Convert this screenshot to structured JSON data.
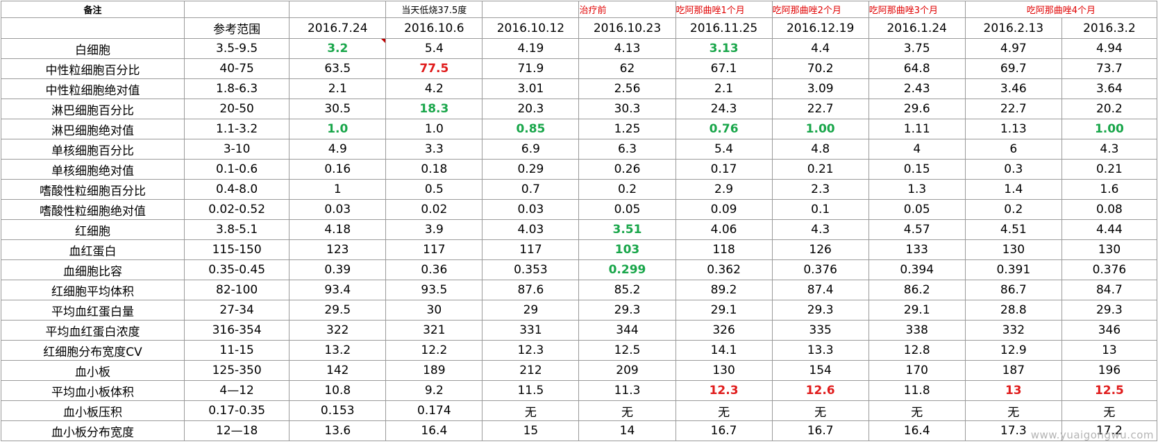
{
  "header_notes": {
    "beizhu": "备注",
    "fever": "当天低烧37.5度",
    "before_treatment": "治疗前",
    "month1": "吃阿那曲唑1个月",
    "month2": "吃阿那曲唑2个月",
    "month3": "吃阿那曲唑3个月",
    "month4": "吃阿那曲唑4个月"
  },
  "columns": {
    "reference": "参考范围",
    "dates": [
      "2016.7.24",
      "2016.10.6",
      "2016.10.12",
      "2016.10.23",
      "2016.11.25",
      "2016.12.19",
      "2016.1.24",
      "2016.2.13",
      "2016.3.2"
    ]
  },
  "rows": [
    {
      "label": "白细胞",
      "ref": "3.5-9.5",
      "values": [
        "3.2",
        "5.4",
        "4.19",
        "4.13",
        "3.13",
        "4.4",
        "3.75",
        "4.97",
        "4.94"
      ],
      "styles": [
        "green",
        "",
        "",
        "",
        "green",
        "",
        "",
        "",
        ""
      ]
    },
    {
      "label": "中性粒细胞百分比",
      "ref": "40-75",
      "values": [
        "63.5",
        "77.5",
        "71.9",
        "62",
        "67.1",
        "70.2",
        "64.8",
        "69.7",
        "73.7"
      ],
      "styles": [
        "",
        "red",
        "",
        "",
        "",
        "",
        "",
        "",
        ""
      ]
    },
    {
      "label": "中性粒细胞绝对值",
      "ref": "1.8-6.3",
      "values": [
        "2.1",
        "4.2",
        "3.01",
        "2.56",
        "2.1",
        "3.09",
        "2.43",
        "3.46",
        "3.64"
      ],
      "styles": [
        "",
        "",
        "",
        "",
        "",
        "",
        "",
        "",
        ""
      ]
    },
    {
      "label": "淋巴细胞百分比",
      "ref": "20-50",
      "values": [
        "30.5",
        "18.3",
        "20.3",
        "30.3",
        "24.3",
        "22.7",
        "29.6",
        "22.7",
        "20.2"
      ],
      "styles": [
        "",
        "green",
        "",
        "",
        "",
        "",
        "",
        "",
        ""
      ]
    },
    {
      "label": "淋巴细胞绝对值",
      "ref": "1.1-3.2",
      "values": [
        "1.0",
        "1.0",
        "0.85",
        "1.25",
        "0.76",
        "1.00",
        "1.11",
        "1.13",
        "1.00"
      ],
      "styles": [
        "green",
        "",
        "green",
        "",
        "green",
        "green",
        "",
        "",
        "green"
      ]
    },
    {
      "label": "单核细胞百分比",
      "ref": "3-10",
      "values": [
        "4.9",
        "3.3",
        "6.9",
        "6.3",
        "5.4",
        "4.8",
        "4",
        "6",
        "4.3"
      ],
      "styles": [
        "",
        "",
        "",
        "",
        "",
        "",
        "",
        "",
        ""
      ]
    },
    {
      "label": "单核细胞绝对值",
      "ref": "0.1-0.6",
      "values": [
        "0.16",
        "0.18",
        "0.29",
        "0.26",
        "0.17",
        "0.21",
        "0.15",
        "0.3",
        "0.21"
      ],
      "styles": [
        "",
        "",
        "",
        "",
        "",
        "",
        "",
        "",
        ""
      ]
    },
    {
      "label": "嗜酸性粒细胞百分比",
      "ref": "0.4-8.0",
      "values": [
        "1",
        "0.5",
        "0.7",
        "0.2",
        "2.9",
        "2.3",
        "1.3",
        "1.4",
        "1.6"
      ],
      "styles": [
        "",
        "",
        "",
        "",
        "",
        "",
        "",
        "",
        ""
      ]
    },
    {
      "label": "嗜酸性粒细胞绝对值",
      "ref": "0.02-0.52",
      "values": [
        "0.03",
        "0.02",
        "0.03",
        "0.05",
        "0.09",
        "0.1",
        "0.05",
        "0.2",
        "0.08"
      ],
      "styles": [
        "",
        "",
        "",
        "",
        "",
        "",
        "",
        "",
        ""
      ]
    },
    {
      "label": "红细胞",
      "ref": "3.8-5.1",
      "values": [
        "4.18",
        "3.9",
        "4.03",
        "3.51",
        "4.06",
        "4.3",
        "4.57",
        "4.51",
        "4.44"
      ],
      "styles": [
        "",
        "",
        "",
        "green",
        "",
        "",
        "",
        "",
        ""
      ]
    },
    {
      "label": "血红蛋白",
      "ref": "115-150",
      "values": [
        "123",
        "117",
        "117",
        "103",
        "118",
        "126",
        "133",
        "130",
        "130"
      ],
      "styles": [
        "",
        "",
        "",
        "green",
        "",
        "",
        "",
        "",
        ""
      ]
    },
    {
      "label": "血细胞比容",
      "ref": "0.35-0.45",
      "values": [
        "0.39",
        "0.36",
        "0.353",
        "0.299",
        "0.362",
        "0.376",
        "0.394",
        "0.391",
        "0.376"
      ],
      "styles": [
        "",
        "",
        "",
        "green",
        "",
        "",
        "",
        "",
        ""
      ]
    },
    {
      "label": "红细胞平均体积",
      "ref": "82-100",
      "values": [
        "93.4",
        "93.5",
        "87.6",
        "85.2",
        "89.2",
        "87.4",
        "86.2",
        "86.7",
        "84.7"
      ],
      "styles": [
        "",
        "",
        "",
        "",
        "",
        "",
        "",
        "",
        ""
      ]
    },
    {
      "label": "平均血红蛋白量",
      "ref": "27-34",
      "values": [
        "29.5",
        "30",
        "29",
        "29.3",
        "29.1",
        "29.3",
        "29.1",
        "28.8",
        "29.3"
      ],
      "styles": [
        "",
        "",
        "",
        "",
        "",
        "",
        "",
        "",
        ""
      ]
    },
    {
      "label": "平均血红蛋白浓度",
      "ref": "316-354",
      "values": [
        "322",
        "321",
        "331",
        "344",
        "326",
        "335",
        "338",
        "332",
        "346"
      ],
      "styles": [
        "",
        "",
        "",
        "",
        "",
        "",
        "",
        "",
        ""
      ]
    },
    {
      "label": "红细胞分布宽度CV",
      "ref": "11-15",
      "values": [
        "13.2",
        "12.2",
        "12.3",
        "12.5",
        "14.1",
        "13.3",
        "12.8",
        "12.9",
        "13"
      ],
      "styles": [
        "",
        "",
        "",
        "",
        "",
        "",
        "",
        "",
        ""
      ]
    },
    {
      "label": "血小板",
      "ref": "125-350",
      "values": [
        "142",
        "189",
        "212",
        "209",
        "130",
        "154",
        "170",
        "187",
        "196"
      ],
      "styles": [
        "",
        "",
        "",
        "",
        "",
        "",
        "",
        "",
        ""
      ]
    },
    {
      "label": "平均血小板体积",
      "ref": "4—12",
      "values": [
        "10.8",
        "9.2",
        "11.5",
        "11.3",
        "12.3",
        "12.6",
        "11.8",
        "13",
        "12.5"
      ],
      "styles": [
        "",
        "",
        "",
        "",
        "red",
        "red",
        "",
        "red",
        "red"
      ]
    },
    {
      "label": "血小板压积",
      "ref": "0.17-0.35",
      "values": [
        "0.153",
        "0.174",
        "无",
        "无",
        "无",
        "无",
        "无",
        "无",
        "无"
      ],
      "styles": [
        "",
        "",
        "",
        "",
        "",
        "",
        "",
        "",
        ""
      ]
    },
    {
      "label": "血小板分布宽度",
      "ref": "12—18",
      "values": [
        "13.6",
        "16.4",
        "15",
        "14",
        "16.7",
        "16.7",
        "16.4",
        "17.3",
        "17.2"
      ],
      "styles": [
        "",
        "",
        "",
        "",
        "",
        "",
        "",
        "",
        ""
      ]
    }
  ],
  "watermark": "www.yuaigongwu.com",
  "colors": {
    "green": "#19a64a",
    "red": "#e01b1b",
    "grid": "#9a9a9a"
  }
}
